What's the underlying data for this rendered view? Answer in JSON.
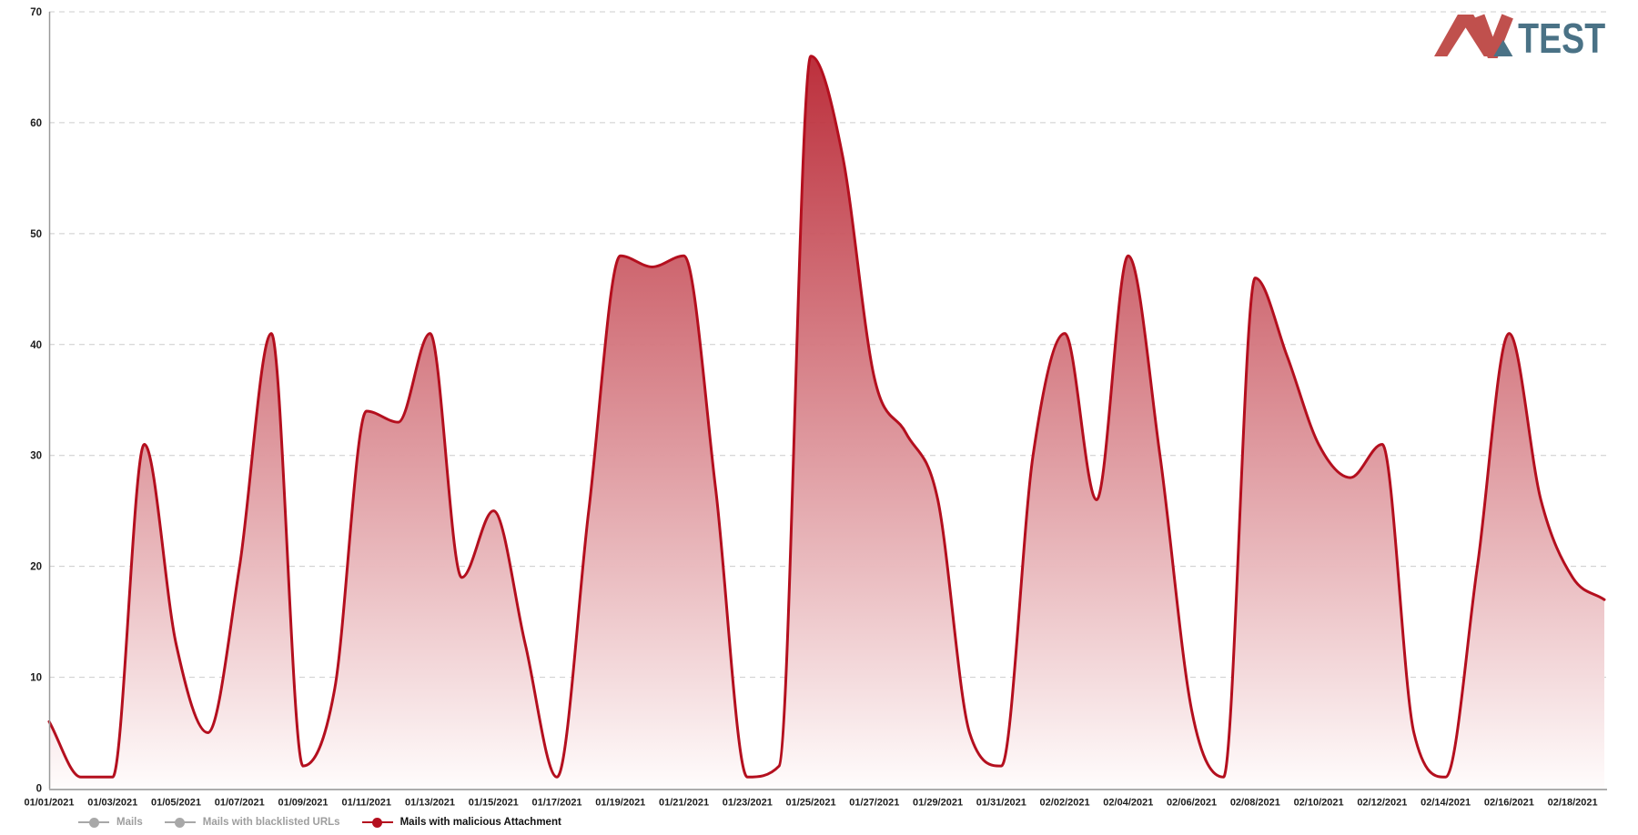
{
  "logo": {
    "mark": "AV",
    "text": "TEST",
    "red": "#c0504d",
    "blue": "#4a7286"
  },
  "legend": {
    "items": [
      {
        "label": "Mails",
        "color": "#a8a8a8",
        "text_color": "#9e9e9e",
        "active": false
      },
      {
        "label": "Mails with blacklisted URLs",
        "color": "#a8a8a8",
        "text_color": "#9e9e9e",
        "active": false
      },
      {
        "label": "Mails with malicious Attachment",
        "color": "#b40f1e",
        "text_color": "#111111",
        "active": true
      }
    ]
  },
  "axes": {
    "y_ticks": [
      0,
      10,
      20,
      30,
      40,
      50,
      60,
      70
    ],
    "x_tick_every": 2,
    "label_color": "#1c1c1c",
    "gridline_color": "#cccccc",
    "axis_color": "#9a9a9a"
  },
  "chart_data": {
    "type": "area",
    "title": "",
    "xlabel": "",
    "ylabel": "",
    "ylim": [
      0,
      70
    ],
    "grid": "horizontal dashed",
    "legend_position": "bottom-left",
    "x": [
      "01/01/2021",
      "01/02/2021",
      "01/03/2021",
      "01/04/2021",
      "01/05/2021",
      "01/06/2021",
      "01/07/2021",
      "01/08/2021",
      "01/09/2021",
      "01/10/2021",
      "01/11/2021",
      "01/12/2021",
      "01/13/2021",
      "01/14/2021",
      "01/15/2021",
      "01/16/2021",
      "01/17/2021",
      "01/18/2021",
      "01/19/2021",
      "01/20/2021",
      "01/21/2021",
      "01/22/2021",
      "01/23/2021",
      "01/24/2021",
      "01/25/2021",
      "01/26/2021",
      "01/27/2021",
      "01/28/2021",
      "01/29/2021",
      "01/30/2021",
      "01/31/2021",
      "02/01/2021",
      "02/02/2021",
      "02/03/2021",
      "02/04/2021",
      "02/05/2021",
      "02/06/2021",
      "02/07/2021",
      "02/08/2021",
      "02/09/2021",
      "02/10/2021",
      "02/11/2021",
      "02/12/2021",
      "02/13/2021",
      "02/14/2021",
      "02/15/2021",
      "02/16/2021",
      "02/17/2021",
      "02/18/2021",
      "02/19/2021"
    ],
    "series": [
      {
        "name": "Mails with malicious Attachment",
        "color": "#b40f1e",
        "fill_gradient_top": "#b31422",
        "fill_gradient_bottom": "#fffcfc",
        "values": [
          6,
          1,
          1,
          31,
          13,
          5,
          20,
          41,
          2,
          9,
          34,
          33,
          41,
          19,
          25,
          13,
          1,
          25,
          48,
          47,
          48,
          27,
          1,
          2,
          66,
          57,
          37,
          32,
          26,
          5,
          2,
          30,
          41,
          26,
          48,
          30,
          7,
          1,
          46,
          39,
          31,
          28,
          31,
          5,
          1,
          20,
          41,
          26,
          19,
          17
        ]
      }
    ]
  }
}
